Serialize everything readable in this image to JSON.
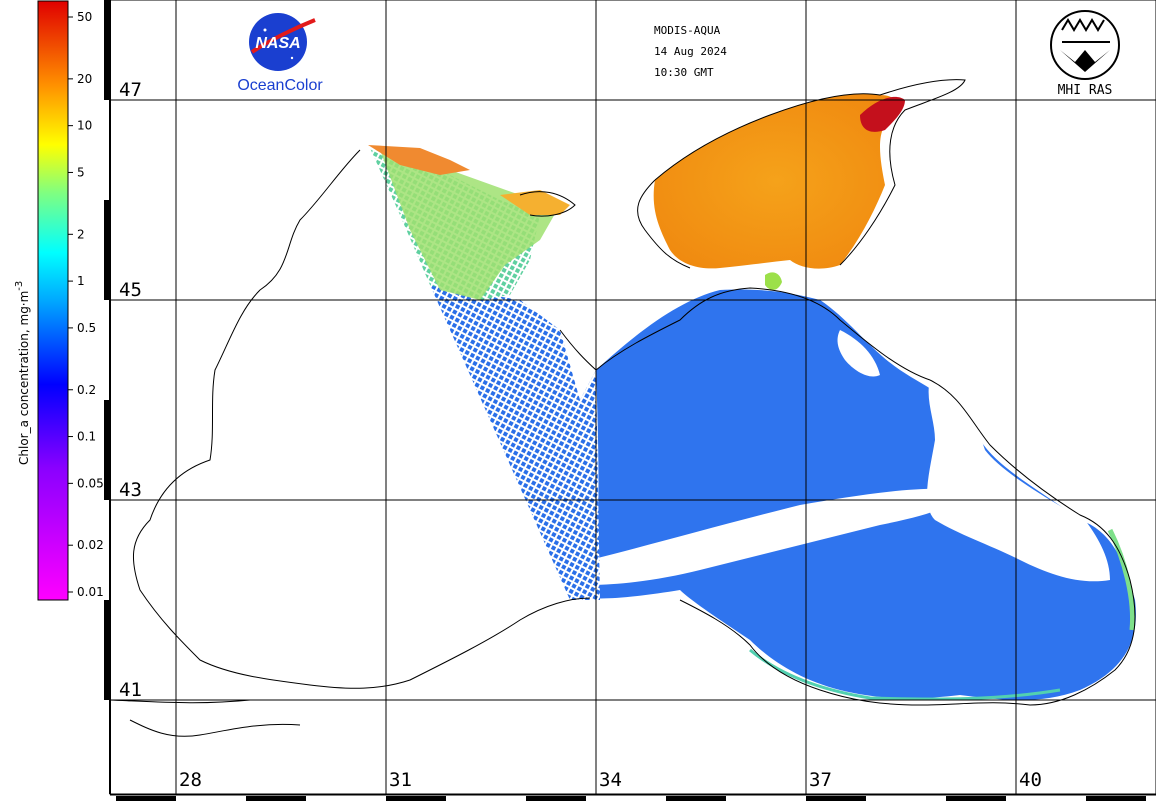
{
  "header": {
    "sensor": "MODIS-AQUA",
    "date": "14 Aug 2024",
    "time": "10:30 GMT"
  },
  "logos": {
    "nasa_text": "NASA",
    "oceancolor": "OceanColor",
    "mhi": "MHI RAS"
  },
  "legend": {
    "title": "Chlor_a concentration, mg·m",
    "title_sup": "-3",
    "ticks": [
      {
        "label": "50",
        "value": 50
      },
      {
        "label": "20",
        "value": 20
      },
      {
        "label": "10",
        "value": 10
      },
      {
        "label": "5",
        "value": 5
      },
      {
        "label": "2",
        "value": 2
      },
      {
        "label": "1",
        "value": 1
      },
      {
        "label": "0.5",
        "value": 0.5
      },
      {
        "label": "0.2",
        "value": 0.2
      },
      {
        "label": "0.1",
        "value": 0.1
      },
      {
        "label": "0.05",
        "value": 0.05
      },
      {
        "label": "0.02",
        "value": 0.02
      },
      {
        "label": "0.01",
        "value": 0.01
      }
    ],
    "min": 0.01,
    "max": 70
  },
  "latitudes": [
    "47",
    "45",
    "43",
    "41"
  ],
  "longitudes": [
    "28",
    "31",
    "34",
    "37",
    "40"
  ],
  "colors": {
    "ocean_low": "#1a5fe0",
    "ocean_mid": "#2a7bf0",
    "coastal_high": "#f3a21c",
    "azov": "#f5a623",
    "hotspot": "#c0001a",
    "green": "#38c98a"
  }
}
